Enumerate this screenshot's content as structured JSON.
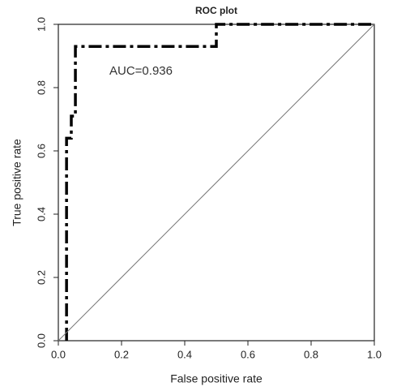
{
  "chart_data": {
    "type": "line",
    "title": "ROC plot",
    "xlabel": "False positive rate",
    "ylabel": "True positive rate",
    "annotation": "AUC=0.936",
    "xlim": [
      0,
      1
    ],
    "ylim": [
      0,
      1
    ],
    "xticks": [
      {
        "value": 0,
        "label": "0.0"
      },
      {
        "value": 0.2,
        "label": "0.2"
      },
      {
        "value": 0.4,
        "label": "0.4"
      },
      {
        "value": 0.6,
        "label": "0.6"
      },
      {
        "value": 0.8,
        "label": "0.8"
      },
      {
        "value": 1,
        "label": "1.0"
      }
    ],
    "yticks": [
      {
        "value": 0,
        "label": "0.0"
      },
      {
        "value": 0.2,
        "label": "0.2"
      },
      {
        "value": 0.4,
        "label": "0.4"
      },
      {
        "value": 0.6,
        "label": "0.6"
      },
      {
        "value": 0.8,
        "label": "0.8"
      },
      {
        "value": 1,
        "label": "1.0"
      }
    ],
    "series": [
      {
        "color": "#000000",
        "style": "dashdot",
        "x": [
          0.026,
          0.026,
          0.041,
          0.041,
          0.054,
          0.054,
          0.5,
          0.5,
          1.0
        ],
        "values": [
          0,
          0.64,
          0.64,
          0.71,
          0.71,
          0.93,
          0.93,
          1.0,
          1.0
        ]
      },
      {
        "color": "#777777",
        "style": "solid",
        "x": [
          0,
          1
        ],
        "values": [
          0,
          1
        ]
      }
    ]
  }
}
